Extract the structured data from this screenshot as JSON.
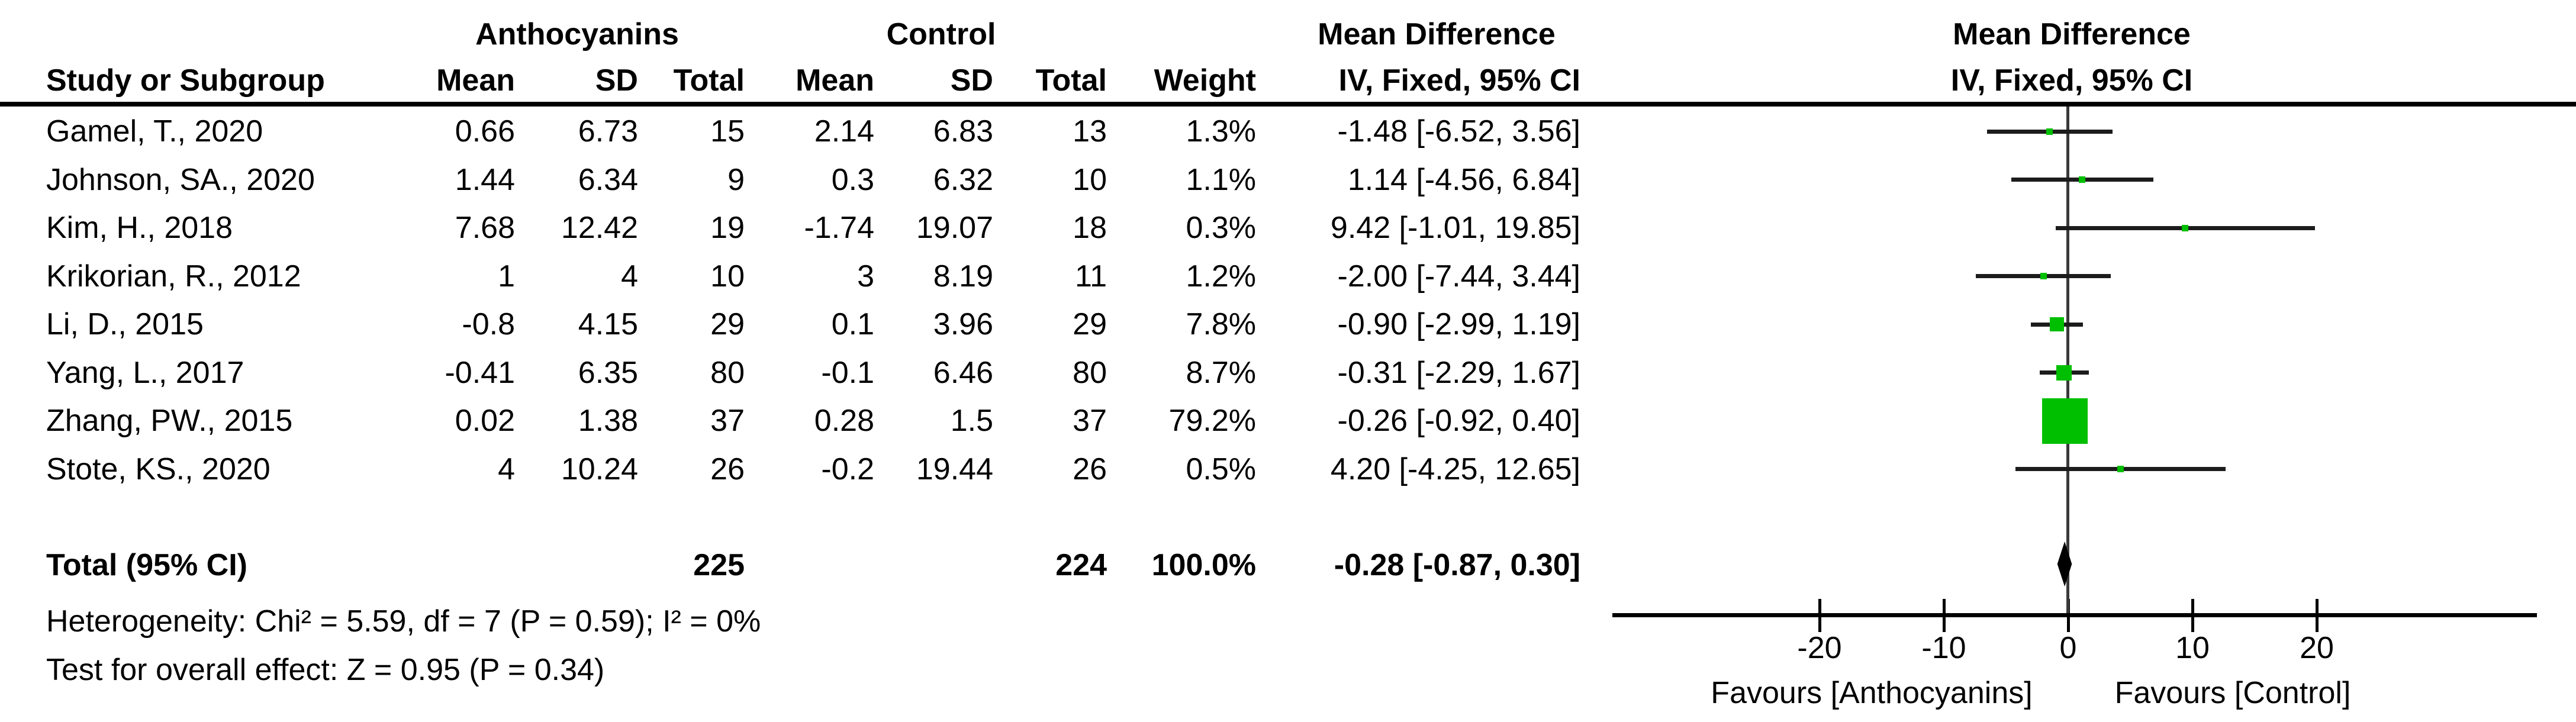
{
  "colors": {
    "marker_green": "#00bf00",
    "line_black": "#000000",
    "ci_line": "#1c1c1c",
    "zero_line_gray": "#3a3a3a",
    "diamond_black": "#000000"
  },
  "columns": {
    "group_experimental": "Anthocyanins",
    "group_control": "Control",
    "study": "Study or Subgroup",
    "mean": "Mean",
    "sd": "SD",
    "total": "Total",
    "weight": "Weight",
    "effect_text_header": "Mean Difference",
    "effect_plot_header": "Mean Difference",
    "iv_text_header": "IV, Fixed, 95% CI",
    "iv_plot_header": "IV, Fixed, 95% CI"
  },
  "chart_data": {
    "type": "forest",
    "effect_measure": "Mean Difference",
    "model": "IV, Fixed, 95% CI",
    "studies": [
      {
        "label": "Gamel, T., 2020",
        "exp_mean": "0.66",
        "exp_sd": "6.73",
        "exp_total": "15",
        "ctl_mean": "2.14",
        "ctl_sd": "6.83",
        "ctl_total": "13",
        "weight": "1.3%",
        "weight_pct": 1.3,
        "ci_text": "-1.48 [-6.52, 3.56]",
        "est": -1.48,
        "lo": -6.52,
        "hi": 3.56
      },
      {
        "label": "Johnson, SA., 2020",
        "exp_mean": "1.44",
        "exp_sd": "6.34",
        "exp_total": "9",
        "ctl_mean": "0.3",
        "ctl_sd": "6.32",
        "ctl_total": "10",
        "weight": "1.1%",
        "weight_pct": 1.1,
        "ci_text": "1.14 [-4.56, 6.84]",
        "est": 1.14,
        "lo": -4.56,
        "hi": 6.84
      },
      {
        "label": "Kim, H., 2018",
        "exp_mean": "7.68",
        "exp_sd": "12.42",
        "exp_total": "19",
        "ctl_mean": "-1.74",
        "ctl_sd": "19.07",
        "ctl_total": "18",
        "weight": "0.3%",
        "weight_pct": 0.3,
        "ci_text": "9.42 [-1.01, 19.85]",
        "est": 9.42,
        "lo": -1.01,
        "hi": 19.85
      },
      {
        "label": "Krikorian, R., 2012",
        "exp_mean": "1",
        "exp_sd": "4",
        "exp_total": "10",
        "ctl_mean": "3",
        "ctl_sd": "8.19",
        "ctl_total": "11",
        "weight": "1.2%",
        "weight_pct": 1.2,
        "ci_text": "-2.00 [-7.44, 3.44]",
        "est": -2.0,
        "lo": -7.44,
        "hi": 3.44
      },
      {
        "label": "Li, D., 2015",
        "exp_mean": "-0.8",
        "exp_sd": "4.15",
        "exp_total": "29",
        "ctl_mean": "0.1",
        "ctl_sd": "3.96",
        "ctl_total": "29",
        "weight": "7.8%",
        "weight_pct": 7.8,
        "ci_text": "-0.90 [-2.99, 1.19]",
        "est": -0.9,
        "lo": -2.99,
        "hi": 1.19
      },
      {
        "label": "Yang, L., 2017",
        "exp_mean": "-0.41",
        "exp_sd": "6.35",
        "exp_total": "80",
        "ctl_mean": "-0.1",
        "ctl_sd": "6.46",
        "ctl_total": "80",
        "weight": "8.7%",
        "weight_pct": 8.7,
        "ci_text": "-0.31 [-2.29, 1.67]",
        "est": -0.31,
        "lo": -2.29,
        "hi": 1.67
      },
      {
        "label": "Zhang, PW., 2015",
        "exp_mean": "0.02",
        "exp_sd": "1.38",
        "exp_total": "37",
        "ctl_mean": "0.28",
        "ctl_sd": "1.5",
        "ctl_total": "37",
        "weight": "79.2%",
        "weight_pct": 79.2,
        "ci_text": "-0.26 [-0.92, 0.40]",
        "est": -0.26,
        "lo": -0.92,
        "hi": 0.4
      },
      {
        "label": "Stote, KS., 2020",
        "exp_mean": "4",
        "exp_sd": "10.24",
        "exp_total": "26",
        "ctl_mean": "-0.2",
        "ctl_sd": "19.44",
        "ctl_total": "26",
        "weight": "0.5%",
        "weight_pct": 0.5,
        "ci_text": "4.20 [-4.25, 12.65]",
        "est": 4.2,
        "lo": -4.25,
        "hi": 12.65
      }
    ],
    "total": {
      "label": "Total (95% CI)",
      "exp_total": "225",
      "ctl_total": "224",
      "weight": "100.0%",
      "ci_text": "-0.28 [-0.87, 0.30]",
      "est": -0.28,
      "lo": -0.87,
      "hi": 0.3
    },
    "heterogeneity": "Heterogeneity: Chi² = 5.59, df = 7 (P = 0.59); I² = 0%",
    "overall_effect": "Test for overall effect: Z = 0.95 (P = 0.34)",
    "axis": {
      "ticks": [
        -20,
        -10,
        0,
        10,
        20
      ],
      "range": [
        -37,
        37.5
      ],
      "favours_left": "Favours [Anthocyanins]",
      "favours_right": "Favours [Control]"
    }
  }
}
